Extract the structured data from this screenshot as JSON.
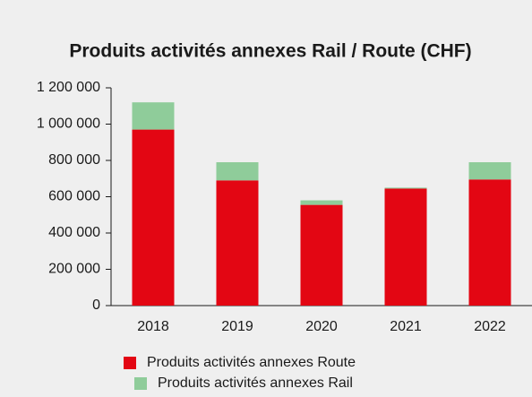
{
  "chart_data": {
    "type": "bar",
    "stacked": true,
    "title": "Produits activités annexes Rail / Route (CHF)",
    "categories": [
      "2018",
      "2019",
      "2020",
      "2021",
      "2022"
    ],
    "series": [
      {
        "name": "Produits activités annexes Route",
        "color": "#e30613",
        "values": [
          970000,
          690000,
          555000,
          645000,
          695000
        ]
      },
      {
        "name": "Produits activités annexes Rail",
        "color": "#8fcc9a",
        "values": [
          150000,
          100000,
          25000,
          5000,
          95000
        ]
      }
    ],
    "ylim": [
      0,
      1200000
    ],
    "yticks": [
      0,
      {
        "value": 200000,
        "label": "200 000"
      },
      {
        "value": 400000,
        "label": "400 000"
      },
      {
        "value": 600000,
        "label": "600 000"
      },
      {
        "value": 800000,
        "label": "800 000"
      },
      {
        "value": 1000000,
        "label": "1 000 000"
      },
      {
        "value": 1200000,
        "label": "1 200 000"
      }
    ],
    "grid": false,
    "legend": "bottom"
  }
}
